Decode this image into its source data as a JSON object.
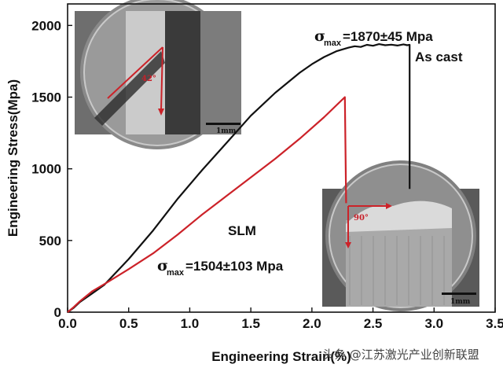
{
  "chart_data": {
    "type": "line",
    "xlabel": "Engineering Strain(%)",
    "ylabel": "Engineering Stress(Mpa)",
    "xlim": [
      0,
      3.5
    ],
    "ylim": [
      0,
      2150
    ],
    "xticks": [
      0.0,
      0.5,
      1.0,
      1.5,
      2.0,
      2.5,
      3.0,
      3.5
    ],
    "xtick_labels": [
      "0.0",
      "0.5",
      "1.0",
      "1.5",
      "2.0",
      "2.5",
      "3.0",
      "3.5"
    ],
    "yticks": [
      0,
      500,
      1000,
      1500,
      2000
    ],
    "ytick_labels": [
      "0",
      "500",
      "1000",
      "1500",
      "2000"
    ],
    "grid": false,
    "legend": "none",
    "series": [
      {
        "name": "As cast",
        "color": "#111111",
        "x": [
          0,
          0.05,
          0.1,
          0.2,
          0.3,
          0.4,
          0.5,
          0.7,
          0.9,
          1.1,
          1.3,
          1.5,
          1.7,
          1.9,
          2.0,
          2.1,
          2.2,
          2.3,
          2.35,
          2.4,
          2.45,
          2.5,
          2.55,
          2.6,
          2.65,
          2.7,
          2.75,
          2.78,
          2.8,
          2.8
        ],
        "y": [
          0,
          30,
          70,
          130,
          190,
          280,
          370,
          570,
          790,
          990,
          1180,
          1370,
          1530,
          1670,
          1730,
          1780,
          1820,
          1845,
          1855,
          1850,
          1865,
          1858,
          1870,
          1862,
          1866,
          1860,
          1868,
          1862,
          1865,
          860
        ]
      },
      {
        "name": "SLM",
        "color": "#cc2229",
        "x": [
          0,
          0.05,
          0.1,
          0.2,
          0.3,
          0.5,
          0.7,
          0.9,
          1.1,
          1.3,
          1.5,
          1.7,
          1.9,
          2.1,
          2.27,
          2.28
        ],
        "y": [
          0,
          35,
          75,
          145,
          195,
          300,
          410,
          540,
          680,
          810,
          940,
          1070,
          1210,
          1360,
          1500,
          760
        ]
      }
    ],
    "annotations": {
      "ascast_symbol": "σ",
      "ascast_sub": "max",
      "ascast_value": "=1870±45 Mpa",
      "ascast_label": "As cast",
      "slm_label": "SLM",
      "slm_symbol": "σ",
      "slm_sub": "max",
      "slm_value": "=1504±103 Mpa"
    },
    "insets": [
      {
        "angle_label": "42°",
        "scale_label": "1mm"
      },
      {
        "angle_label": "90°",
        "scale_label": "1mm"
      }
    ]
  },
  "watermark": "头条 @江苏激光产业创新联盟"
}
